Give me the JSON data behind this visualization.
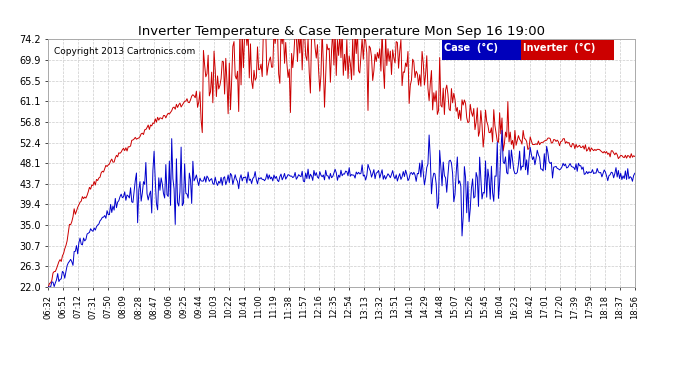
{
  "title": "Inverter Temperature & Case Temperature Mon Sep 16 19:00",
  "copyright": "Copyright 2013 Cartronics.com",
  "background_color": "#ffffff",
  "plot_bg_color": "#ffffff",
  "grid_color": "#cccccc",
  "ylim": [
    22.0,
    74.2
  ],
  "yticks": [
    22.0,
    26.3,
    30.7,
    35.0,
    39.4,
    43.7,
    48.1,
    52.4,
    56.8,
    61.1,
    65.5,
    69.9,
    74.2
  ],
  "xtick_labels": [
    "06:32",
    "06:51",
    "07:12",
    "07:31",
    "07:50",
    "08:09",
    "08:28",
    "08:47",
    "09:06",
    "09:25",
    "09:44",
    "10:03",
    "10:22",
    "10:41",
    "11:00",
    "11:19",
    "11:38",
    "11:57",
    "12:16",
    "12:35",
    "12:54",
    "13:13",
    "13:32",
    "13:51",
    "14:10",
    "14:29",
    "14:48",
    "15:07",
    "15:26",
    "15:45",
    "16:04",
    "16:23",
    "16:42",
    "17:01",
    "17:20",
    "17:39",
    "17:59",
    "18:18",
    "18:37",
    "18:56"
  ],
  "legend_case_label": "Case  (°C)",
  "legend_inverter_label": "Inverter  (°C)",
  "legend_case_bg": "#0000bb",
  "legend_inverter_bg": "#cc0000",
  "line_case_color": "#0000cc",
  "line_inverter_color": "#cc0000"
}
